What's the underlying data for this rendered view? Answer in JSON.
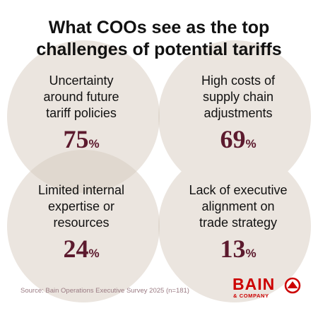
{
  "title_lines": [
    "What COOs see as the top",
    "challenges of potential tariffs"
  ],
  "chart_data": {
    "type": "table",
    "title": "What COOs see as the top challenges of potential tariffs",
    "categories": [
      "Uncertainty around future tariff policies",
      "High costs of supply chain adjustments",
      "Limited internal expertise or resources",
      "Lack of executive alignment on trade strategy"
    ],
    "values": [
      75,
      69,
      24,
      13
    ],
    "unit": "%"
  },
  "stats": [
    {
      "label_lines": [
        "Uncertainty",
        "around future",
        "tariff policies"
      ],
      "value": "75",
      "unit": "%"
    },
    {
      "label_lines": [
        "High costs of",
        "supply chain",
        "adjustments"
      ],
      "value": "69",
      "unit": "%"
    },
    {
      "label_lines": [
        "Limited internal",
        "expertise or",
        "resources"
      ],
      "value": "24",
      "unit": "%"
    },
    {
      "label_lines": [
        "Lack of executive",
        "alignment on",
        "trade strategy"
      ],
      "value": "13",
      "unit": "%"
    }
  ],
  "source": "Source: Bain Operations Executive Survey 2025 (n=181)",
  "logo": {
    "word": "BAIN",
    "sub": "& COMPANY"
  },
  "colors": {
    "circle": "#ebe5df",
    "overlap": "#e0d8cf",
    "value": "#5c1a2e",
    "brand": "#cc0000"
  }
}
